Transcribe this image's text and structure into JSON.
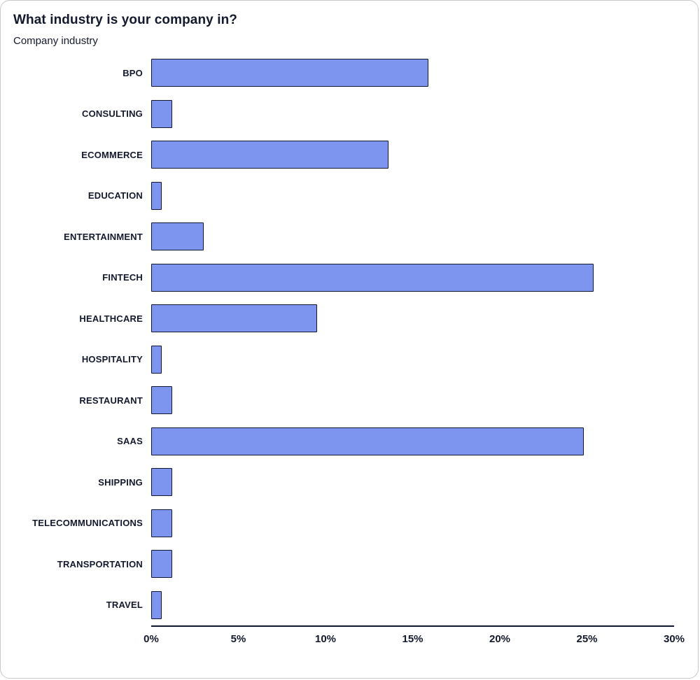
{
  "chart_data": {
    "type": "bar",
    "orientation": "horizontal",
    "title": "What industry is your company in?",
    "subtitle": "Company industry",
    "categories": [
      "BPO",
      "CONSULTING",
      "ECOMMERCE",
      "EDUCATION",
      "ENTERTAINMENT",
      "FINTECH",
      "HEALTHCARE",
      "HOSPITALITY",
      "RESTAURANT",
      "SAAS",
      "SHIPPING",
      "TELECOMMUNICATIONS",
      "TRANSPORTATION",
      "TRAVEL"
    ],
    "values": [
      15.9,
      1.2,
      13.6,
      0.6,
      3.0,
      25.4,
      9.5,
      0.6,
      1.2,
      24.8,
      1.2,
      1.2,
      1.2,
      0.6
    ],
    "value_unit": "%",
    "xlabel": "",
    "ylabel": "",
    "xlim": [
      0,
      30
    ],
    "x_tick_values": [
      0,
      5,
      10,
      15,
      20,
      25,
      30
    ],
    "x_tick_labels": [
      "0%",
      "5%",
      "10%",
      "15%",
      "20%",
      "25%",
      "30%"
    ],
    "grid": false,
    "legend_position": "none",
    "bar_color": "#7e95ef",
    "bar_border_color": "#10172e",
    "text_color": "#141a2e"
  }
}
